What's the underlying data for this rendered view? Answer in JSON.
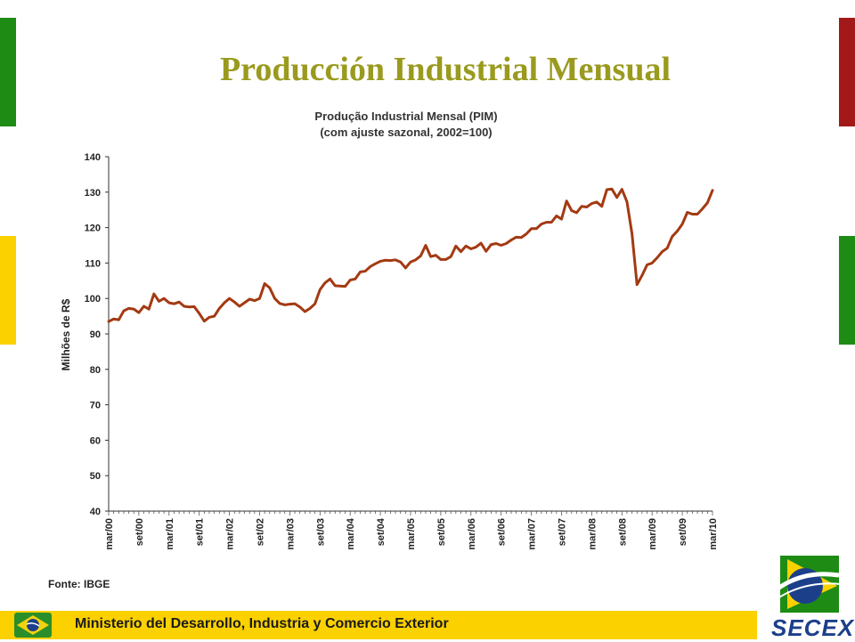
{
  "slide": {
    "title": "Producción Industrial Mensual",
    "footer_text": "Ministerio del Desarrollo, Industria y Comercio Exterior",
    "logo_text": "SECEX",
    "colors": {
      "title": "#9a9a1e",
      "green": "#1e8c14",
      "red": "#a31818",
      "yellow": "#fbd100",
      "line": "#a33a12"
    }
  },
  "chart_data": {
    "type": "line",
    "title": "Produção Industrial Mensal (PIM)",
    "subtitle": "(com ajuste sazonal, 2002=100)",
    "ylabel": "Milhões de R$",
    "source": "Fonte: IBGE",
    "ylim": [
      40,
      140
    ],
    "yticks": [
      40,
      50,
      60,
      70,
      80,
      90,
      100,
      110,
      120,
      130,
      140
    ],
    "x_tick_labels": [
      "mar/00",
      "set/00",
      "mar/01",
      "set/01",
      "mar/02",
      "set/02",
      "mar/03",
      "set/03",
      "mar/04",
      "set/04",
      "mar/05",
      "set/05",
      "mar/06",
      "set/06",
      "mar/07",
      "set/07",
      "mar/08",
      "set/08",
      "mar/09",
      "set/09",
      "mar/10"
    ],
    "x_start": "mar/00",
    "x_end": "mar/10",
    "series": [
      {
        "color": "#a33a12",
        "values": [
          93.5,
          94.2,
          94.0,
          96.5,
          97.2,
          97.0,
          96.0,
          97.8,
          97.0,
          101.3,
          99.2,
          100.0,
          98.8,
          98.5,
          99.0,
          97.8,
          97.6,
          97.7,
          95.8,
          93.6,
          94.7,
          95.0,
          97.2,
          98.8,
          100.0,
          99.0,
          97.8,
          98.8,
          99.8,
          99.4,
          100.0,
          104.2,
          103.0,
          100.0,
          98.6,
          98.2,
          98.4,
          98.5,
          97.6,
          96.3,
          97.2,
          98.5,
          102.5,
          104.4,
          105.5,
          103.6,
          103.5,
          103.4,
          105.2,
          105.5,
          107.5,
          107.7,
          109.0,
          109.8,
          110.5,
          110.8,
          110.7,
          110.9,
          110.3,
          108.6,
          110.3,
          110.9,
          112.0,
          115.0,
          111.8,
          112.2,
          111.0,
          111.0,
          111.8,
          114.8,
          113.2,
          114.8,
          114.0,
          114.5,
          115.6,
          113.3,
          115.2,
          115.5,
          115.0,
          115.5,
          116.5,
          117.3,
          117.2,
          118.2,
          119.7,
          119.7,
          121.0,
          121.5,
          121.5,
          123.3,
          122.4,
          127.5,
          124.8,
          124.2,
          126.0,
          125.8,
          126.8,
          127.2,
          126.0,
          130.7,
          130.9,
          128.5,
          130.8,
          127.3,
          118.3,
          103.9,
          106.5,
          109.5,
          110.0,
          111.5,
          113.2,
          114.2,
          117.5,
          119.0,
          121.0,
          124.3,
          123.8,
          123.8,
          125.3,
          127.0,
          130.5
        ]
      }
    ]
  }
}
